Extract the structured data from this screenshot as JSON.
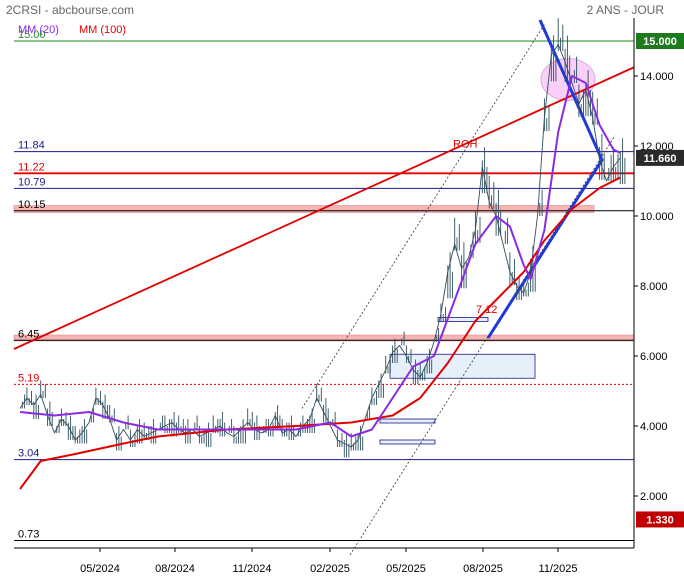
{
  "header": {
    "source": "2CRSI - abcbourse.com",
    "period": "2 ANS - JOUR"
  },
  "legend": [
    {
      "name": "MM (20)",
      "color": "#8a2be2"
    },
    {
      "name": "MM (100)",
      "color": "#e00000"
    }
  ],
  "colors": {
    "price": "#2f4f5f",
    "mm20": "#8a2be2",
    "mm100": "#e00000",
    "trend_red": "#e00000",
    "wedge_blue": "#1e3ad8",
    "level_blue": "#1a1a8c",
    "level_green": "#1f8a1f",
    "tag_green": "#1f7a1f",
    "tag_dark": "#2b2b2b",
    "tag_red": "#c00000",
    "zone_red": "#f5b5b5",
    "zone_blue": "#e6f0fb",
    "ellipse": "#f7c8f7"
  },
  "chart_data": {
    "type": "line",
    "title": "",
    "y_ticks": [
      "2.000",
      "4.000",
      "6.000",
      "8.000",
      "10.000",
      "12.000",
      "14.000"
    ],
    "x_ticks": [
      "05/2024",
      "08/2024",
      "11/2024",
      "02/2025",
      "05/2025",
      "08/2025",
      "11/2025"
    ],
    "tags": [
      {
        "value": 15.0,
        "text": "15.000",
        "kind": "green"
      },
      {
        "value": 11.66,
        "text": "11.660",
        "kind": "dark"
      },
      {
        "value": 1.33,
        "text": "1.330",
        "kind": "red"
      }
    ],
    "levels": [
      {
        "value": 15.0,
        "label": "15.00",
        "color": "green"
      },
      {
        "value": 11.84,
        "label": "11.84",
        "color": "blue"
      },
      {
        "value": 11.22,
        "label": "11.22",
        "color": "red"
      },
      {
        "value": 10.79,
        "label": "10.79",
        "color": "blue"
      },
      {
        "value": 10.15,
        "label": "10.15",
        "color": "black"
      },
      {
        "value": 6.45,
        "label": "6.45",
        "color": "black"
      },
      {
        "value": 5.19,
        "label": "5.19",
        "color": "red"
      },
      {
        "value": 3.04,
        "label": "3.04",
        "color": "blue"
      },
      {
        "value": 0.73,
        "label": "0.73",
        "color": "black"
      }
    ],
    "annotations": [
      {
        "text": "ROH",
        "value": 11.84
      },
      {
        "text": "7.12",
        "value": 7.12
      }
    ],
    "price": [
      [
        0,
        4.5
      ],
      [
        1,
        4.8
      ],
      [
        2,
        4.6
      ],
      [
        3,
        4.9
      ],
      [
        4,
        4.3
      ],
      [
        5,
        3.8
      ],
      [
        6,
        4.2
      ],
      [
        7,
        4.0
      ],
      [
        8,
        3.6
      ],
      [
        9,
        3.8
      ],
      [
        10,
        4.1
      ],
      [
        11,
        4.8
      ],
      [
        12,
        4.6
      ],
      [
        13,
        4.2
      ],
      [
        14,
        3.6
      ],
      [
        15,
        3.9
      ],
      [
        16,
        3.6
      ],
      [
        17,
        3.9
      ],
      [
        18,
        3.7
      ],
      [
        19,
        3.8
      ],
      [
        20,
        3.9
      ],
      [
        21,
        4.0
      ],
      [
        22,
        4.1
      ],
      [
        23,
        3.9
      ],
      [
        24,
        3.8
      ],
      [
        25,
        3.9
      ],
      [
        26,
        3.7
      ],
      [
        27,
        3.8
      ],
      [
        28,
        3.9
      ],
      [
        29,
        4.0
      ],
      [
        30,
        3.8
      ],
      [
        31,
        3.7
      ],
      [
        32,
        3.9
      ],
      [
        33,
        4.1
      ],
      [
        34,
        3.9
      ],
      [
        35,
        3.8
      ],
      [
        36,
        3.9
      ],
      [
        37,
        4.3
      ],
      [
        38,
        3.8
      ],
      [
        39,
        3.9
      ],
      [
        40,
        3.7
      ],
      [
        41,
        4.0
      ],
      [
        42,
        4.2
      ],
      [
        43,
        4.8
      ],
      [
        44,
        4.4
      ],
      [
        45,
        4.0
      ],
      [
        46,
        3.6
      ],
      [
        47,
        3.5
      ],
      [
        48,
        3.4
      ],
      [
        49,
        3.6
      ],
      [
        50,
        4.2
      ],
      [
        51,
        4.8
      ],
      [
        52,
        5.2
      ],
      [
        53,
        5.6
      ],
      [
        54,
        6.1
      ],
      [
        55,
        6.3
      ],
      [
        56,
        6.0
      ],
      [
        57,
        5.6
      ],
      [
        58,
        5.4
      ],
      [
        59,
        5.8
      ],
      [
        60,
        6.4
      ],
      [
        61,
        7.2
      ],
      [
        62,
        8.4
      ],
      [
        63,
        9.2
      ],
      [
        64,
        8.5
      ],
      [
        65,
        8.8
      ],
      [
        66,
        9.6
      ],
      [
        67,
        11.4
      ],
      [
        68,
        10.4
      ],
      [
        69,
        10.0
      ],
      [
        70,
        9.2
      ],
      [
        71,
        8.4
      ],
      [
        72,
        8.0
      ],
      [
        73,
        7.8
      ],
      [
        74,
        8.4
      ],
      [
        75,
        10.0
      ],
      [
        76,
        12.8
      ],
      [
        77,
        14.6
      ],
      [
        78,
        14.9
      ],
      [
        79,
        14.4
      ],
      [
        80,
        13.8
      ],
      [
        81,
        13.2
      ],
      [
        82,
        13.6
      ],
      [
        83,
        12.8
      ],
      [
        84,
        11.6
      ],
      [
        85,
        11.0
      ],
      [
        86,
        11.4
      ],
      [
        87,
        11.66
      ]
    ],
    "mm20": [
      [
        0,
        4.4
      ],
      [
        5,
        4.3
      ],
      [
        10,
        4.4
      ],
      [
        15,
        4.1
      ],
      [
        20,
        3.9
      ],
      [
        25,
        3.9
      ],
      [
        30,
        3.9
      ],
      [
        35,
        3.9
      ],
      [
        40,
        3.9
      ],
      [
        45,
        4.1
      ],
      [
        48,
        3.7
      ],
      [
        51,
        3.9
      ],
      [
        54,
        4.8
      ],
      [
        57,
        5.7
      ],
      [
        60,
        6.0
      ],
      [
        63,
        7.6
      ],
      [
        66,
        9.2
      ],
      [
        69,
        10.0
      ],
      [
        71,
        9.7
      ],
      [
        73,
        8.6
      ],
      [
        74,
        8.2
      ],
      [
        76,
        9.6
      ],
      [
        78,
        12.4
      ],
      [
        80,
        14.0
      ],
      [
        82,
        13.8
      ],
      [
        84,
        12.6
      ],
      [
        86,
        11.9
      ],
      [
        87,
        11.8
      ]
    ],
    "mm100": [
      [
        0,
        2.2
      ],
      [
        3,
        3.0
      ],
      [
        8,
        3.2
      ],
      [
        15,
        3.5
      ],
      [
        20,
        3.7
      ],
      [
        30,
        3.9
      ],
      [
        40,
        4.0
      ],
      [
        48,
        4.1
      ],
      [
        54,
        4.3
      ],
      [
        58,
        4.8
      ],
      [
        62,
        5.8
      ],
      [
        66,
        7.0
      ],
      [
        70,
        7.8
      ],
      [
        73,
        8.4
      ],
      [
        76,
        9.3
      ],
      [
        80,
        10.2
      ],
      [
        84,
        10.8
      ],
      [
        87,
        11.1
      ]
    ]
  }
}
